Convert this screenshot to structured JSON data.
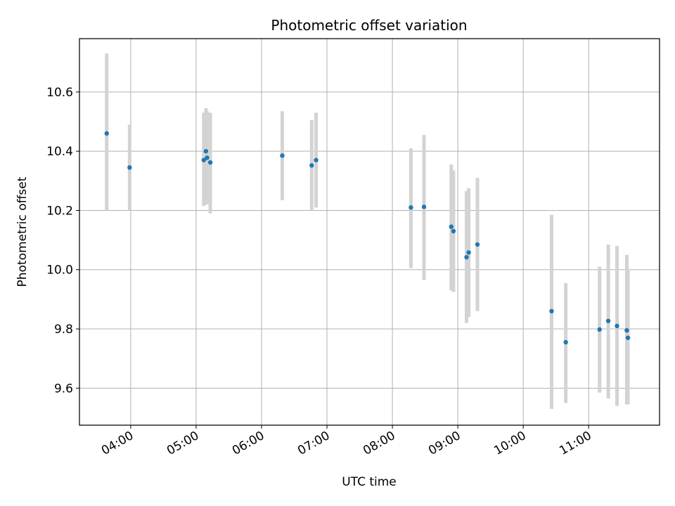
{
  "chart_data": {
    "type": "scatter",
    "title": "Photometric offset variation",
    "xlabel": "UTC time",
    "ylabel": "Photometric offset",
    "x_axis_kind": "time",
    "xlim": [
      "03:13",
      "12:05"
    ],
    "ylim": [
      9.475,
      10.78
    ],
    "x_ticks": [
      "04:00",
      "05:00",
      "06:00",
      "07:00",
      "08:00",
      "09:00",
      "10:00",
      "11:00"
    ],
    "y_ticks": [
      9.6,
      9.8,
      10.0,
      10.2,
      10.4,
      10.6
    ],
    "grid": true,
    "colors": {
      "points": "#1f77b4",
      "errorbars": "#d3d3d3",
      "grid": "#b0b0b0"
    },
    "points": [
      {
        "x": "03:38",
        "y": 10.46,
        "yerr_low": 10.2,
        "yerr_high": 10.73
      },
      {
        "x": "03:59",
        "y": 10.345,
        "yerr_low": 10.2,
        "yerr_high": 10.49
      },
      {
        "x": "05:07",
        "y": 10.37,
        "yerr_low": 10.215,
        "yerr_high": 10.53
      },
      {
        "x": "05:09",
        "y": 10.4,
        "yerr_low": 10.23,
        "yerr_high": 10.545
      },
      {
        "x": "05:10",
        "y": 10.378,
        "yerr_low": 10.22,
        "yerr_high": 10.535
      },
      {
        "x": "05:13",
        "y": 10.362,
        "yerr_low": 10.19,
        "yerr_high": 10.53
      },
      {
        "x": "06:19",
        "y": 10.385,
        "yerr_low": 10.235,
        "yerr_high": 10.535
      },
      {
        "x": "06:46",
        "y": 10.352,
        "yerr_low": 10.2,
        "yerr_high": 10.505
      },
      {
        "x": "06:50",
        "y": 10.37,
        "yerr_low": 10.21,
        "yerr_high": 10.53
      },
      {
        "x": "08:17",
        "y": 10.21,
        "yerr_low": 10.005,
        "yerr_high": 10.41
      },
      {
        "x": "08:29",
        "y": 10.212,
        "yerr_low": 9.965,
        "yerr_high": 10.455
      },
      {
        "x": "08:54",
        "y": 10.145,
        "yerr_low": 9.93,
        "yerr_high": 10.355
      },
      {
        "x": "08:56",
        "y": 10.13,
        "yerr_low": 9.925,
        "yerr_high": 10.335
      },
      {
        "x": "09:08",
        "y": 10.042,
        "yerr_low": 9.82,
        "yerr_high": 10.265
      },
      {
        "x": "09:10",
        "y": 10.058,
        "yerr_low": 9.84,
        "yerr_high": 10.275
      },
      {
        "x": "09:18",
        "y": 10.085,
        "yerr_low": 9.86,
        "yerr_high": 10.31
      },
      {
        "x": "10:26",
        "y": 9.86,
        "yerr_low": 9.53,
        "yerr_high": 10.185
      },
      {
        "x": "10:39",
        "y": 9.755,
        "yerr_low": 9.55,
        "yerr_high": 9.955
      },
      {
        "x": "11:10",
        "y": 9.798,
        "yerr_low": 9.585,
        "yerr_high": 10.01
      },
      {
        "x": "11:18",
        "y": 9.827,
        "yerr_low": 9.565,
        "yerr_high": 10.085
      },
      {
        "x": "11:26",
        "y": 9.81,
        "yerr_low": 9.54,
        "yerr_high": 10.08
      },
      {
        "x": "11:35",
        "y": 9.795,
        "yerr_low": 9.545,
        "yerr_high": 10.05
      },
      {
        "x": "11:36",
        "y": 9.77,
        "yerr_low": 9.545,
        "yerr_high": 10.0
      }
    ]
  }
}
